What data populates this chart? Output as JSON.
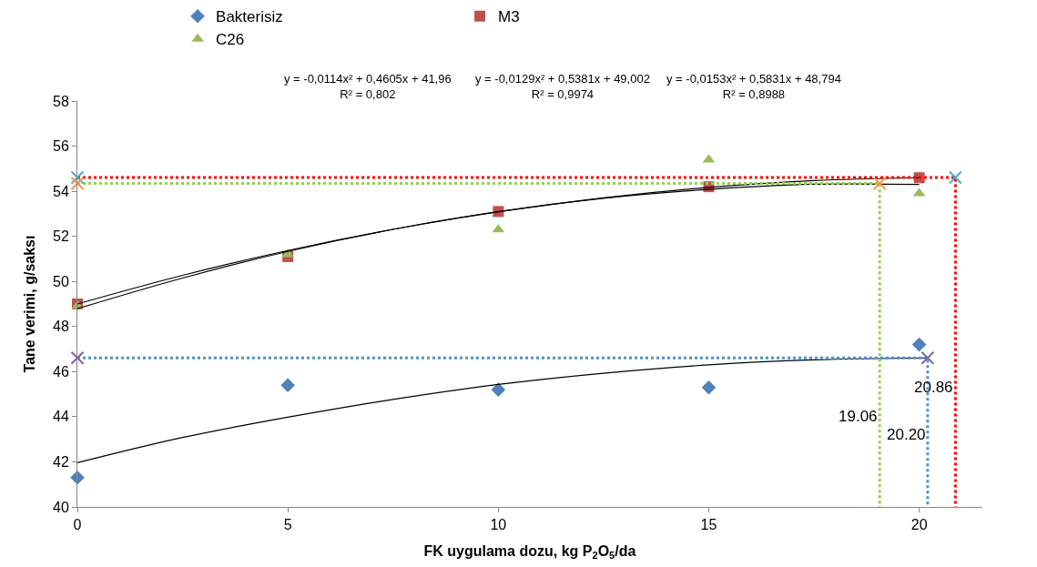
{
  "chart_data": {
    "type": "scatter",
    "xlabel": "FK uygulama dozu, kg P$_{2}$O$_{5}$/da",
    "ylabel": "Tane verimi, g/saksı",
    "x": [
      0,
      5,
      10,
      15,
      20
    ],
    "series": [
      {
        "name": "Bakterisiz",
        "color": "#4f81bd",
        "marker": "diamond",
        "values": [
          41.3,
          45.4,
          45.2,
          45.3,
          47.2
        ]
      },
      {
        "name": "M3",
        "color": "#c0504d",
        "marker": "square",
        "values": [
          49.0,
          51.1,
          53.1,
          54.2,
          54.6
        ]
      },
      {
        "name": "C26",
        "color": "#9bbb59",
        "marker": "triangle",
        "values": [
          48.9,
          51.2,
          52.3,
          55.4,
          53.9
        ]
      },
      {
        "type": "line",
        "color": "#000000",
        "marker": "none",
        "line_style": "solid",
        "x": [
          0,
          2.5,
          5,
          7.5,
          10,
          12.5,
          15,
          17.5,
          20.2
        ],
        "values": [
          41.96,
          43.08,
          43.98,
          44.77,
          45.43,
          45.93,
          46.3,
          46.52,
          46.61
        ]
      },
      {
        "type": "line",
        "color": "#000000",
        "marker": "none",
        "line_style": "solid",
        "x": [
          0,
          2.5,
          5,
          7.5,
          10,
          12.5,
          15,
          17.5,
          20
        ],
        "values": [
          49.0,
          50.27,
          51.37,
          52.31,
          53.09,
          53.71,
          54.17,
          54.47,
          54.6
        ]
      },
      {
        "type": "line",
        "color": "#000000",
        "marker": "none",
        "line_style": "solid",
        "x": [
          0,
          2.5,
          5,
          7.5,
          10,
          12.5,
          15,
          17.5,
          20
        ],
        "values": [
          48.79,
          50.15,
          51.33,
          52.31,
          53.09,
          53.69,
          54.08,
          54.31,
          54.3
        ]
      },
      {
        "type": "line",
        "color": "#ff0000",
        "marker": "none",
        "line_style": "dotted",
        "x": [
          0,
          20.86,
          20.86
        ],
        "values": [
          54.61,
          54.61,
          40
        ]
      },
      {
        "type": "line",
        "color": "#92d050",
        "marker": "none",
        "line_style": "dotted",
        "x": [
          0,
          19.06,
          19.06
        ],
        "values": [
          54.35,
          54.35,
          40
        ]
      },
      {
        "type": "line",
        "color": "#4a90d9",
        "marker": "none",
        "line_style": "dotted",
        "x": [
          0,
          20.2,
          20.2
        ],
        "values": [
          46.61,
          46.61,
          40
        ]
      },
      {
        "color": "#4bacc6",
        "marker": "cross",
        "x": [
          0,
          20.86
        ],
        "values": [
          54.61,
          54.61
        ]
      },
      {
        "color": "#f79646",
        "marker": "cross",
        "x": [
          0,
          19.06
        ],
        "values": [
          54.35,
          54.35
        ]
      },
      {
        "color": "#8064a2",
        "marker": "cross",
        "x": [
          0,
          20.2
        ],
        "values": [
          46.61,
          46.61
        ]
      }
    ],
    "xlim": [
      0,
      21.5
    ],
    "xticks": [
      0,
      5,
      10,
      15,
      20
    ],
    "ylim": [
      40,
      58
    ],
    "yticks": [
      40,
      42,
      44,
      46,
      48,
      50,
      52,
      54,
      56,
      58
    ],
    "legend": "top",
    "annotations": [
      "y = -0,0114x² + 0,4605x + 41,96\nR² = 0,802",
      "y = -0,0129x² + 0,5381x + 49,002\nR² = 0,9974",
      "y = -0,0153x² + 0,5831x + 48,794\nR² = 0,8988",
      {
        "text": "19.06",
        "x": 19.06,
        "y": 44
      },
      {
        "text": "20.20",
        "x": 20.2,
        "y": 43.2
      },
      {
        "text": "20.86",
        "x": 20.86,
        "y": 45.3
      }
    ]
  }
}
